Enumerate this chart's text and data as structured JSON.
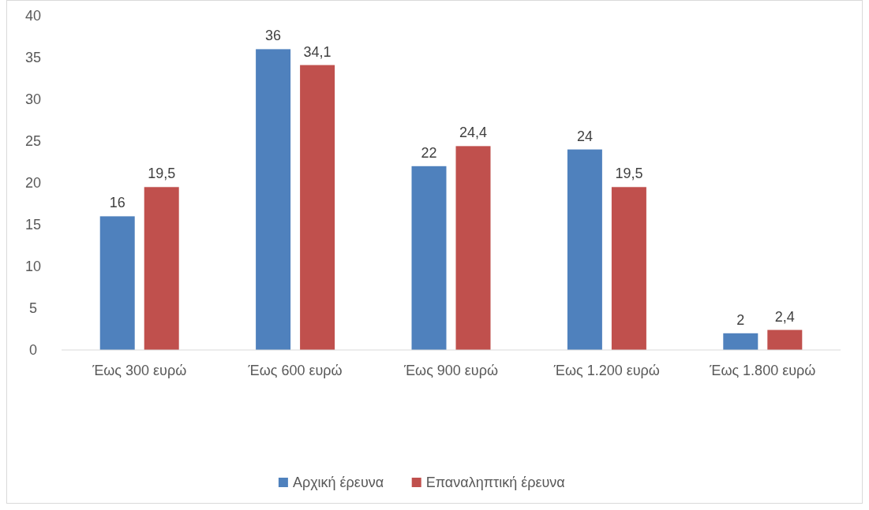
{
  "chart_data": {
    "type": "bar",
    "categories": [
      "Έως 300 ευρώ",
      "Έως 600 ευρώ",
      "Έως 900 ευρώ",
      "Έως 1.200 ευρώ",
      "Έως 1.800 ευρώ"
    ],
    "series": [
      {
        "name": "Αρχική έρευνα",
        "color": "#4f81bd",
        "values": [
          16,
          36,
          22,
          24,
          2
        ],
        "value_labels": [
          "16",
          "36",
          "22",
          "24",
          "2"
        ]
      },
      {
        "name": "Επαναληπτική έρευνα",
        "color": "#c0504d",
        "values": [
          19.5,
          34.1,
          24.4,
          19.5,
          2.4
        ],
        "value_labels": [
          "19,5",
          "34,1",
          "24,4",
          "19,5",
          "2,4"
        ]
      }
    ],
    "ylim": [
      0,
      40
    ],
    "yticks": [
      0,
      5,
      10,
      15,
      20,
      25,
      30,
      35,
      40
    ],
    "grid": false,
    "legend": "bottom"
  }
}
